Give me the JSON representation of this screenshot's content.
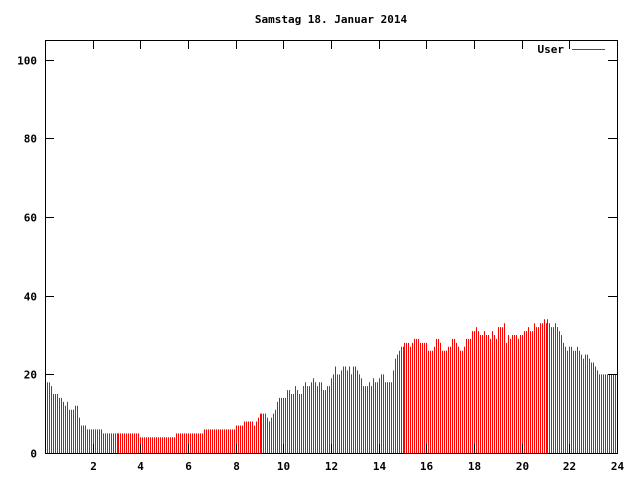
{
  "chart_data": {
    "type": "bar",
    "style": "impulses",
    "title": "Samstag 18. Januar 2014",
    "xlabel": "",
    "ylabel": "",
    "xlim": [
      0,
      24
    ],
    "ylim": [
      0,
      105
    ],
    "xticks": [
      2,
      4,
      6,
      8,
      10,
      12,
      14,
      16,
      18,
      20,
      22,
      24
    ],
    "yticks": [
      0,
      20,
      40,
      60,
      80,
      100
    ],
    "grid": false,
    "legend_position": "top-right",
    "series": [
      {
        "name": "User",
        "color": "#ff0000",
        "x_step_hours": 0.0833,
        "values": [
          22,
          18,
          18,
          17,
          15,
          15,
          15,
          14,
          14,
          13,
          12,
          13,
          11,
          11,
          11,
          12,
          12,
          9,
          7,
          7,
          7,
          6,
          6,
          6,
          6,
          6,
          6,
          6,
          6,
          5,
          5,
          5,
          5,
          5,
          5,
          5,
          5,
          5,
          5,
          5,
          5,
          5,
          5,
          5,
          5,
          5,
          5,
          5,
          4,
          4,
          4,
          4,
          4,
          4,
          4,
          4,
          4,
          4,
          4,
          4,
          4,
          4,
          4,
          4,
          4,
          4,
          5,
          5,
          5,
          5,
          5,
          5,
          5,
          5,
          5,
          5,
          5,
          5,
          5,
          5,
          6,
          6,
          6,
          6,
          6,
          6,
          6,
          6,
          6,
          6,
          6,
          6,
          6,
          6,
          6,
          6,
          7,
          7,
          7,
          7,
          8,
          8,
          8,
          8,
          8,
          7,
          8,
          9,
          10,
          10,
          10,
          10,
          9,
          8,
          9,
          10,
          11,
          13,
          14,
          14,
          14,
          14,
          16,
          16,
          15,
          15,
          17,
          16,
          15,
          15,
          17,
          18,
          17,
          17,
          18,
          19,
          18,
          17,
          18,
          18,
          16,
          16,
          17,
          17,
          19,
          20,
          22,
          20,
          20,
          21,
          22,
          22,
          21,
          22,
          20,
          22,
          22,
          21,
          20,
          19,
          17,
          17,
          17,
          18,
          17,
          19,
          18,
          18,
          19,
          20,
          20,
          18,
          18,
          18,
          18,
          21,
          24,
          25,
          26,
          27,
          27,
          28,
          28,
          28,
          27,
          28,
          29,
          29,
          29,
          28,
          28,
          28,
          28,
          26,
          26,
          26,
          27,
          29,
          29,
          28,
          26,
          26,
          26,
          27,
          27,
          29,
          29,
          28,
          27,
          26,
          26,
          27,
          29,
          29,
          29,
          31,
          31,
          32,
          31,
          30,
          30,
          31,
          30,
          30,
          29,
          31,
          30,
          29,
          32,
          32,
          32,
          33,
          28,
          30,
          29,
          30,
          30,
          30,
          29,
          30,
          30,
          31,
          31,
          32,
          31,
          31,
          33,
          32,
          32,
          33,
          33,
          34,
          33,
          34,
          33,
          32,
          32,
          33,
          32,
          31,
          30,
          28,
          27,
          26,
          27,
          27,
          26,
          26,
          27,
          26,
          25,
          24,
          25,
          25,
          24,
          23,
          23,
          22,
          21,
          20,
          20,
          20,
          20,
          20,
          20,
          20,
          20,
          20
        ]
      }
    ]
  }
}
